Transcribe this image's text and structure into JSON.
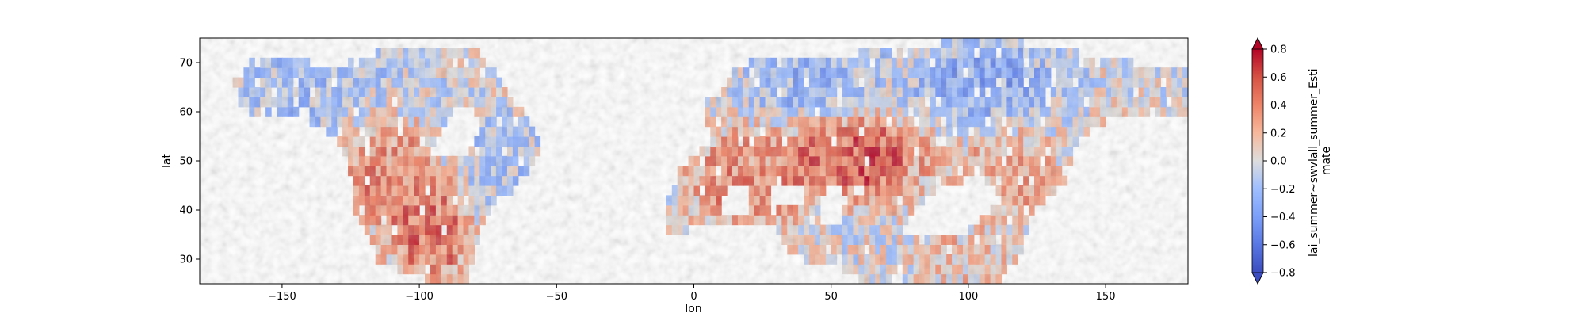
{
  "chart_data": {
    "type": "heatmap",
    "title": "",
    "xlabel": "lon",
    "ylabel": "lat",
    "xlim": [
      -180,
      180
    ],
    "ylim": [
      25,
      75
    ],
    "x_ticks": [
      -150,
      -100,
      -50,
      0,
      50,
      100,
      150
    ],
    "y_ticks": [
      30,
      40,
      50,
      60,
      70
    ],
    "colorbar": {
      "label": "lai_summer~swvlall_summer_Esti\nmate",
      "vmin": -0.8,
      "vmax": 0.8,
      "extend": "both",
      "colormap": "coolwarm",
      "ticks": [
        -0.8,
        -0.6,
        -0.4,
        -0.2,
        0.0,
        0.2,
        0.4,
        0.6,
        0.8
      ],
      "tick_labels": [
        "−0.8",
        "−0.6",
        "−0.4",
        "−0.2",
        "0.0",
        "0.2",
        "0.4",
        "0.6",
        "0.8"
      ]
    },
    "regions": [
      {
        "lon_min": -170,
        "lon_max": -100,
        "lat_min": 55,
        "lat_max": 72,
        "value": -0.2
      },
      {
        "lon_min": -125,
        "lon_max": -100,
        "lat_min": 38,
        "lat_max": 60,
        "value": 0.4
      },
      {
        "lon_min": -105,
        "lon_max": -85,
        "lat_min": 27,
        "lat_max": 45,
        "value": 0.45
      },
      {
        "lon_min": -85,
        "lon_max": -60,
        "lat_min": 42,
        "lat_max": 58,
        "value": -0.15
      },
      {
        "lon_min": 0,
        "lon_max": 40,
        "lat_min": 38,
        "lat_max": 55,
        "value": 0.35
      },
      {
        "lon_min": 40,
        "lon_max": 80,
        "lat_min": 45,
        "lat_max": 57,
        "value": 0.55
      },
      {
        "lon_min": 20,
        "lon_max": 60,
        "lat_min": 60,
        "lat_max": 72,
        "value": -0.25
      },
      {
        "lon_min": 80,
        "lon_max": 130,
        "lat_min": 60,
        "lat_max": 72,
        "value": -0.3
      },
      {
        "lon_min": 100,
        "lon_max": 130,
        "lat_min": 40,
        "lat_max": 55,
        "value": 0.25
      },
      {
        "lon_min": 80,
        "lon_max": 120,
        "lat_min": 25,
        "lat_max": 35,
        "value": 0.15
      }
    ]
  },
  "colors": {
    "cmap_low": "#3b4cc0",
    "cmap_mid": "#dddddd",
    "cmap_high": "#b40426",
    "axes": "#000000"
  }
}
